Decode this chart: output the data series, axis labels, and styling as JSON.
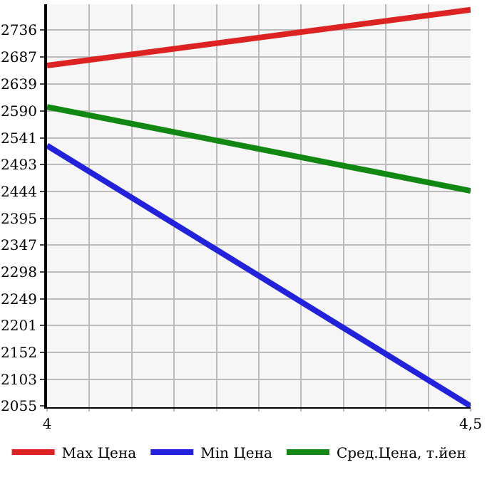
{
  "chart_data": {
    "type": "line",
    "x": [
      4,
      4.5
    ],
    "series": [
      {
        "name": "Max Цена",
        "color": "#dd2222",
        "values": [
          2672,
          2773
        ]
      },
      {
        "name": "Min Цена",
        "color": "#2222dd",
        "values": [
          2527,
          2055
        ]
      },
      {
        "name": "Сред.Цена, т.йен",
        "color": "#118811",
        "values": [
          2597,
          2445
        ]
      }
    ],
    "xlim": [
      4,
      4.5
    ],
    "xticks": [
      4,
      {
        "value": 4.05,
        "label": null
      },
      {
        "value": 4.1,
        "label": null
      },
      {
        "value": 4.15,
        "label": null
      },
      {
        "value": 4.2,
        "label": null
      },
      {
        "value": 4.25,
        "label": null
      },
      {
        "value": 4.3,
        "label": null
      },
      {
        "value": 4.35,
        "label": null
      },
      {
        "value": 4.4,
        "label": null
      },
      {
        "value": 4.45,
        "label": null
      },
      {
        "value": 4.5,
        "label": "4,5"
      }
    ],
    "ylim": [
      2053,
      2783
    ],
    "yticks": [
      2055,
      2103,
      2152,
      2201,
      2249,
      2298,
      2347,
      2395,
      2444,
      2493,
      2541,
      2590,
      2639,
      2687,
      2736
    ],
    "grid": true,
    "legend": "bottom",
    "marker": "none",
    "line_style": "solid"
  }
}
